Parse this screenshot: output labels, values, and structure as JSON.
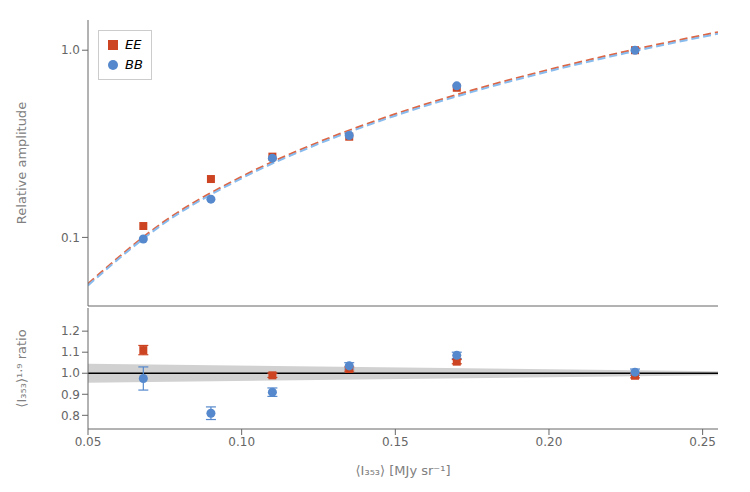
{
  "chart_data": [
    {
      "type": "scatter",
      "y_label": "Relative amplitude",
      "log": "y",
      "tick_labels": "y",
      "legend": "upper left",
      "xlim": [
        0.05,
        0.255
      ],
      "xticks": [
        0.05,
        {
          "value": 0.1,
          "label": "0.10"
        },
        0.15,
        {
          "value": 0.2,
          "label": "0.20"
        },
        0.25
      ],
      "ylim": [
        0.043,
        1.45
      ],
      "yticks": [
        0.1,
        {
          "value": 1,
          "label": "1.0"
        }
      ],
      "series": [
        {
          "type": "line",
          "line_style": "dashed",
          "color": "#DD6644",
          "x": [
            0.05,
            0.075,
            0.1,
            0.125,
            0.15,
            0.175,
            0.2,
            0.225,
            0.255
          ],
          "values": [
            0.05653,
            0.12214,
            0.21098,
            0.32239,
            0.45585,
            0.61097,
            0.78741,
            0.9849,
            1.24931
          ]
        },
        {
          "type": "line",
          "line_style": "dashed",
          "color": "#88BBEE",
          "x": [
            0.05,
            0.075,
            0.1,
            0.125,
            0.15,
            0.175,
            0.2,
            0.225,
            0.255
          ],
          "values": [
            0.05541,
            0.11972,
            0.2068,
            0.316,
            0.44682,
            0.59887,
            0.77182,
            0.9654,
            1.22458
          ]
        },
        {
          "type": "scatter",
          "name": "EE",
          "marker": "square",
          "color": "#CC4422",
          "x": [
            0.068,
            0.09,
            0.11,
            0.135,
            0.17,
            0.228
          ],
          "values": [
            0.115,
            0.205,
            0.27,
            0.345,
            0.63,
            1.0
          ]
        },
        {
          "type": "scatter",
          "name": "BB",
          "marker": "circle",
          "color": "#5588CC",
          "x": [
            0.068,
            0.09,
            0.11,
            0.135,
            0.17,
            0.228
          ],
          "values": [
            0.098,
            0.16,
            0.265,
            0.35,
            0.645,
            1.0
          ]
        }
      ]
    },
    {
      "type": "scatter",
      "x_label": "⟨I₃₅₃⟩ [MJy sr⁻¹]",
      "y_label": "⟨I₃₅₃⟩¹·⁹ ratio",
      "xlim": [
        0.05,
        0.255
      ],
      "xticks": [
        0.05,
        {
          "value": 0.1,
          "label": "0.10"
        },
        0.15,
        {
          "value": 0.2,
          "label": "0.20"
        },
        0.25
      ],
      "ylim": [
        0.735,
        1.31
      ],
      "yticks": [
        0.8,
        0.9,
        {
          "value": 1,
          "label": "1.0"
        },
        1.1,
        1.2
      ],
      "series": [
        {
          "type": "area",
          "color": "#999999",
          "x": [
            0.05,
            0.255
          ],
          "lower": [
            0.955,
            0.991
          ],
          "upper": [
            1.045,
            1.009
          ]
        },
        {
          "type": "line",
          "line_style": "solid",
          "color": "#000000",
          "x": [
            0.05,
            0.255
          ],
          "values": [
            1.0,
            1.0
          ]
        },
        {
          "type": "scatter",
          "name": "EE",
          "marker": "square",
          "color": "#CC4422",
          "x": [
            0.068,
            0.11,
            0.135,
            0.17,
            0.228
          ],
          "values": [
            1.11,
            0.99,
            1.02,
            1.055,
            0.988
          ],
          "yerr": [
            0.022,
            0.01,
            0.01,
            0.01,
            0.01
          ]
        },
        {
          "type": "scatter",
          "name": "BB",
          "marker": "circle",
          "color": "#5588CC",
          "x": [
            0.068,
            0.09,
            0.11,
            0.135,
            0.17,
            0.228
          ],
          "values": [
            0.975,
            0.81,
            0.91,
            1.035,
            1.085,
            1.005
          ],
          "yerr": [
            0.055,
            0.03,
            0.02,
            0.015,
            0.015,
            0.015
          ]
        }
      ]
    }
  ]
}
